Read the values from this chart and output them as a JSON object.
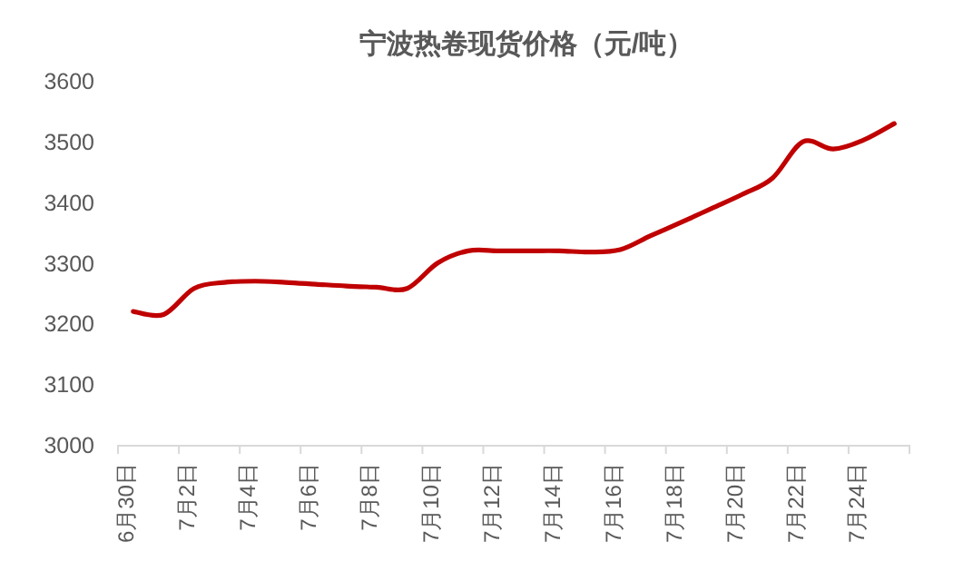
{
  "chart_data": {
    "type": "line",
    "title": "宁波热卷现货价格（元/吨）",
    "categories": [
      "6月30日",
      null,
      "7月2日",
      null,
      "7月4日",
      null,
      "7月6日",
      null,
      "7月8日",
      null,
      "7月10日",
      null,
      "7月12日",
      null,
      "7月14日",
      null,
      "7月16日",
      null,
      "7月18日",
      null,
      "7月20日",
      null,
      "7月22日",
      null,
      "7月24日",
      null
    ],
    "series": [
      {
        "color": "#c00000",
        "values": [
          3220,
          3215,
          3258,
          3268,
          3270,
          3268,
          3265,
          3262,
          3260,
          3258,
          3300,
          3320,
          3320,
          3320,
          3320,
          3318,
          3322,
          3345,
          3367,
          3390,
          3413,
          3440,
          3500,
          3488,
          3503,
          3530
        ]
      }
    ],
    "ylim": [
      3000,
      3600
    ],
    "yticks": [
      3000,
      3100,
      3200,
      3300,
      3400,
      3500,
      3600
    ],
    "grid": false,
    "marker": "none",
    "line_style": "solid"
  }
}
